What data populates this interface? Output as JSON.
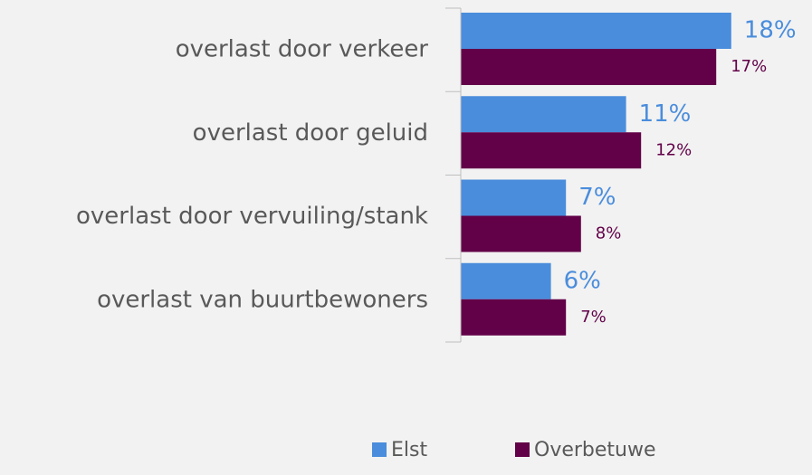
{
  "chart_data": {
    "type": "hbar",
    "categories": [
      "overlast door verkeer",
      "overlast door geluid",
      "overlast door vervuiling/stank",
      "overlast van buurtbewoners"
    ],
    "series": [
      {
        "name": "Elst",
        "color": "#4a8ddc",
        "values": [
          18,
          11,
          7,
          6
        ],
        "value_labels": [
          "18%",
          "11%",
          "7%",
          "6%"
        ]
      },
      {
        "name": "Overbetuwe",
        "color": "#620048",
        "values": [
          17,
          12,
          8,
          7
        ],
        "value_labels": [
          "17%",
          "12%",
          "8%",
          "7%"
        ]
      }
    ],
    "xlim": [
      0,
      20
    ],
    "legend": "bottom"
  }
}
